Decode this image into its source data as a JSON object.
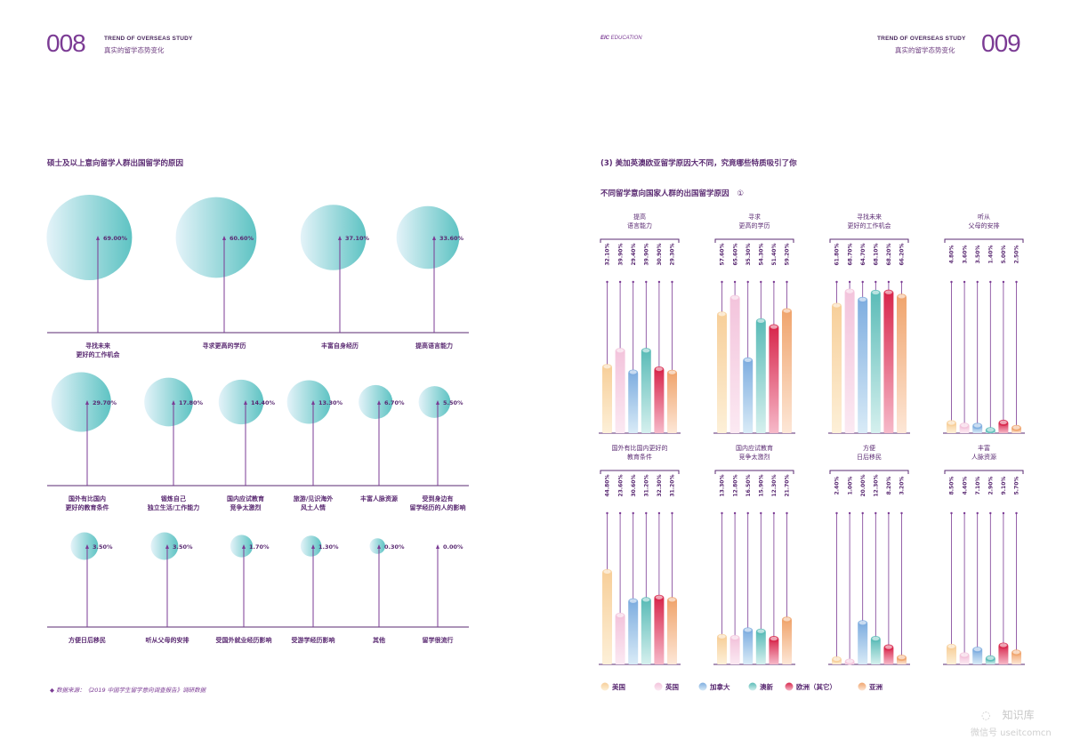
{
  "header": {
    "left_page_number": "008",
    "left_title_en": "TREND OF OVERSEAS STUDY",
    "left_title_cn": "真实的留学态势变化",
    "brand_bold": "EIC",
    "brand_rest": " EDUCATION",
    "right_title_en": "TREND OF OVERSEAS STUDY",
    "right_title_cn": "真实的留学态势变化",
    "right_page_number": "009"
  },
  "left": {
    "section_title": "硕士及以上意向留学人群出国留学的原因",
    "source": "◆  数据来源：《2019 中国学生留学意向调查报告》调研数据"
  },
  "right": {
    "heading": "(3) 美加英澳欧亚留学原因大不同，究竟哪些特质吸引了你",
    "subtitle": "不同留学意向国家人群的出国留学原因",
    "subtitle_badge": "①"
  },
  "watermark": {
    "line1": "知识库",
    "line2": "微信号 useitcomcn"
  },
  "colors": {
    "circle_light": "#dff1f8",
    "circle_dark": "#5ec3c3",
    "purple": "#5a2a72",
    "stem": "#7b3b94"
  },
  "chart_data": [
    {
      "type": "bubble",
      "title": "硕士及以上意向留学人群出国留学的原因",
      "categories": [
        "寻找未来\n更好的工作机会",
        "寻求更高的学历",
        "丰富自身经历",
        "提高语言能力",
        "国外有比国内\n更好的教育条件",
        "锻炼自己\n独立生活/工作能力",
        "国内应试教育\n竞争太激烈",
        "旅游/见识海外\n风土人情",
        "丰富人脉资源",
        "受到身边有\n留学经历的人的影响",
        "方便日后移民",
        "听从父母的安排",
        "受国外就业经历影响",
        "受游学经历影响",
        "其他",
        "留学很流行"
      ],
      "values": [
        69.0,
        60.6,
        37.1,
        33.6,
        29.7,
        17.8,
        14.4,
        13.3,
        6.7,
        5.5,
        3.5,
        3.5,
        1.7,
        1.3,
        0.3,
        0.0
      ],
      "value_labels": [
        "69.00%",
        "60.60%",
        "37.10%",
        "33.60%",
        "29.70%",
        "17.80%",
        "14.40%",
        "13.30%",
        "6.70%",
        "5.50%",
        "3.50%",
        "3.50%",
        "1.70%",
        "1.30%",
        "0.30%",
        "0.00%"
      ]
    },
    {
      "type": "bar",
      "title": "不同留学意向国家人群的出国留学原因",
      "series_names": [
        "美国",
        "英国",
        "加拿大",
        "澳新",
        "欧洲（其它）",
        "亚洲"
      ],
      "series_colors": [
        [
          "#fdf0d8",
          "#f7cf9a"
        ],
        [
          "#fbe9f2",
          "#f3c4dc"
        ],
        [
          "#d9ebf7",
          "#7faee0"
        ],
        [
          "#d5f0ee",
          "#5cbcb8"
        ],
        [
          "#f6b9c9",
          "#d8284d"
        ],
        [
          "#fde7d7",
          "#f0a56e"
        ]
      ],
      "ylim": [
        0,
        70
      ],
      "groups": [
        {
          "label": "提高\n语言能力",
          "values": [
            32.1,
            39.9,
            29.4,
            39.9,
            30.9,
            29.3
          ],
          "labels": [
            "32.10%",
            "39.90%",
            "29.40%",
            "39.90%",
            "30.90%",
            "29.30%"
          ]
        },
        {
          "label": "寻求\n更高的学历",
          "values": [
            57.6,
            65.6,
            35.3,
            54.3,
            51.4,
            59.2
          ],
          "labels": [
            "57.60%",
            "65.60%",
            "35.30%",
            "54.30%",
            "51.40%",
            "59.20%"
          ]
        },
        {
          "label": "寻找未来\n更好的工作机会",
          "values": [
            61.8,
            68.7,
            64.7,
            68.1,
            68.2,
            66.2
          ],
          "labels": [
            "61.80%",
            "68.70%",
            "64.70%",
            "68.10%",
            "68.20%",
            "66.20%"
          ]
        },
        {
          "label": "听从\n父母的安排",
          "values": [
            4.8,
            3.6,
            3.5,
            1.4,
            5.0,
            2.5
          ],
          "labels": [
            "4.80%",
            "3.60%",
            "3.50%",
            "1.40%",
            "5.00%",
            "2.50%"
          ]
        },
        {
          "label": "国外有比国内更好的\n教育条件",
          "values": [
            44.8,
            23.6,
            30.6,
            31.2,
            32.3,
            31.2
          ],
          "labels": [
            "44.80%",
            "23.60%",
            "30.60%",
            "31.20%",
            "32.30%",
            "31.20%"
          ]
        },
        {
          "label": "国内应试教育\n竞争太激烈",
          "values": [
            13.3,
            12.8,
            16.5,
            15.9,
            12.3,
            21.7
          ],
          "labels": [
            "13.30%",
            "12.80%",
            "16.50%",
            "15.90%",
            "12.30%",
            "21.70%"
          ]
        },
        {
          "label": "方便\n日后移民",
          "values": [
            2.4,
            1.0,
            20.0,
            12.3,
            8.2,
            3.2
          ],
          "labels": [
            "2.40%",
            "1.00%",
            "20.00%",
            "12.30%",
            "8.20%",
            "3.20%"
          ]
        },
        {
          "label": "丰富\n人脉资源",
          "values": [
            8.5,
            4.4,
            7.1,
            2.9,
            9.1,
            5.7
          ],
          "labels": [
            "8.50%",
            "4.40%",
            "7.10%",
            "2.90%",
            "9.10%",
            "5.70%"
          ]
        }
      ]
    }
  ]
}
